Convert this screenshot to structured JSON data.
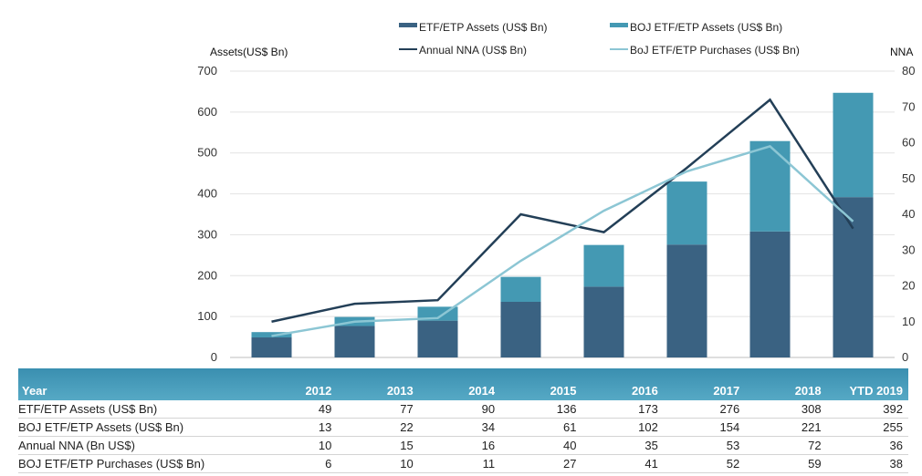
{
  "chart_data": {
    "type": "bar",
    "categories": [
      "2012",
      "2013",
      "2014",
      "2015",
      "2016",
      "2017",
      "2018",
      "YTD 2019"
    ],
    "series": [
      {
        "name": "ETF/ETP Assets (US$ Bn)",
        "kind": "bar",
        "axis": "left",
        "color": "#3a6282",
        "values": [
          49,
          77,
          90,
          136,
          173,
          276,
          308,
          392
        ]
      },
      {
        "name": "BOJ ETF/ETP Assets (US$ Bn)",
        "kind": "bar",
        "axis": "left",
        "color": "#4499b3",
        "values": [
          13,
          22,
          34,
          61,
          102,
          154,
          221,
          255
        ]
      },
      {
        "name": "Annual NNA (US$ Bn)",
        "kind": "line",
        "axis": "right",
        "color": "#233f57",
        "values": [
          10,
          15,
          16,
          40,
          35,
          53,
          72,
          36
        ]
      },
      {
        "name": "BoJ ETF/ETP Purchases (US$ Bn)",
        "kind": "line",
        "axis": "right",
        "color": "#8cc6d4",
        "values": [
          6,
          10,
          11,
          27,
          41,
          52,
          59,
          38
        ]
      }
    ],
    "ylabel_left": "Assets(US$ Bn)",
    "ylabel_right": "NNA",
    "ylim_left": [
      0,
      700
    ],
    "yticks_left": [
      0,
      100,
      200,
      300,
      400,
      500,
      600,
      700
    ],
    "ylim_right": [
      0,
      80
    ],
    "yticks_right": [
      0,
      10,
      20,
      30,
      40,
      50,
      60,
      70,
      80
    ],
    "grid": true,
    "legend_position": "top"
  },
  "table": {
    "headers": [
      "Year",
      "2012",
      "2013",
      "2014",
      "2015",
      "2016",
      "2017",
      "2018",
      "YTD 2019"
    ],
    "rows": [
      {
        "label": "ETF/ETP Assets (US$ Bn)",
        "values": [
          "49",
          "77",
          "90",
          "136",
          "173",
          "276",
          "308",
          "392"
        ]
      },
      {
        "label": "BOJ ETF/ETP Assets (US$ Bn)",
        "values": [
          "13",
          "22",
          "34",
          "61",
          "102",
          "154",
          "221",
          "255"
        ]
      },
      {
        "label": "Annual NNA (Bn US$)",
        "values": [
          "10",
          "15",
          "16",
          "40",
          "35",
          "53",
          "72",
          "36"
        ]
      },
      {
        "label": "BOJ ETF/ETP Purchases  (US$ Bn)",
        "values": [
          "6",
          "10",
          "11",
          "27",
          "41",
          "52",
          "59",
          "38"
        ]
      }
    ]
  }
}
